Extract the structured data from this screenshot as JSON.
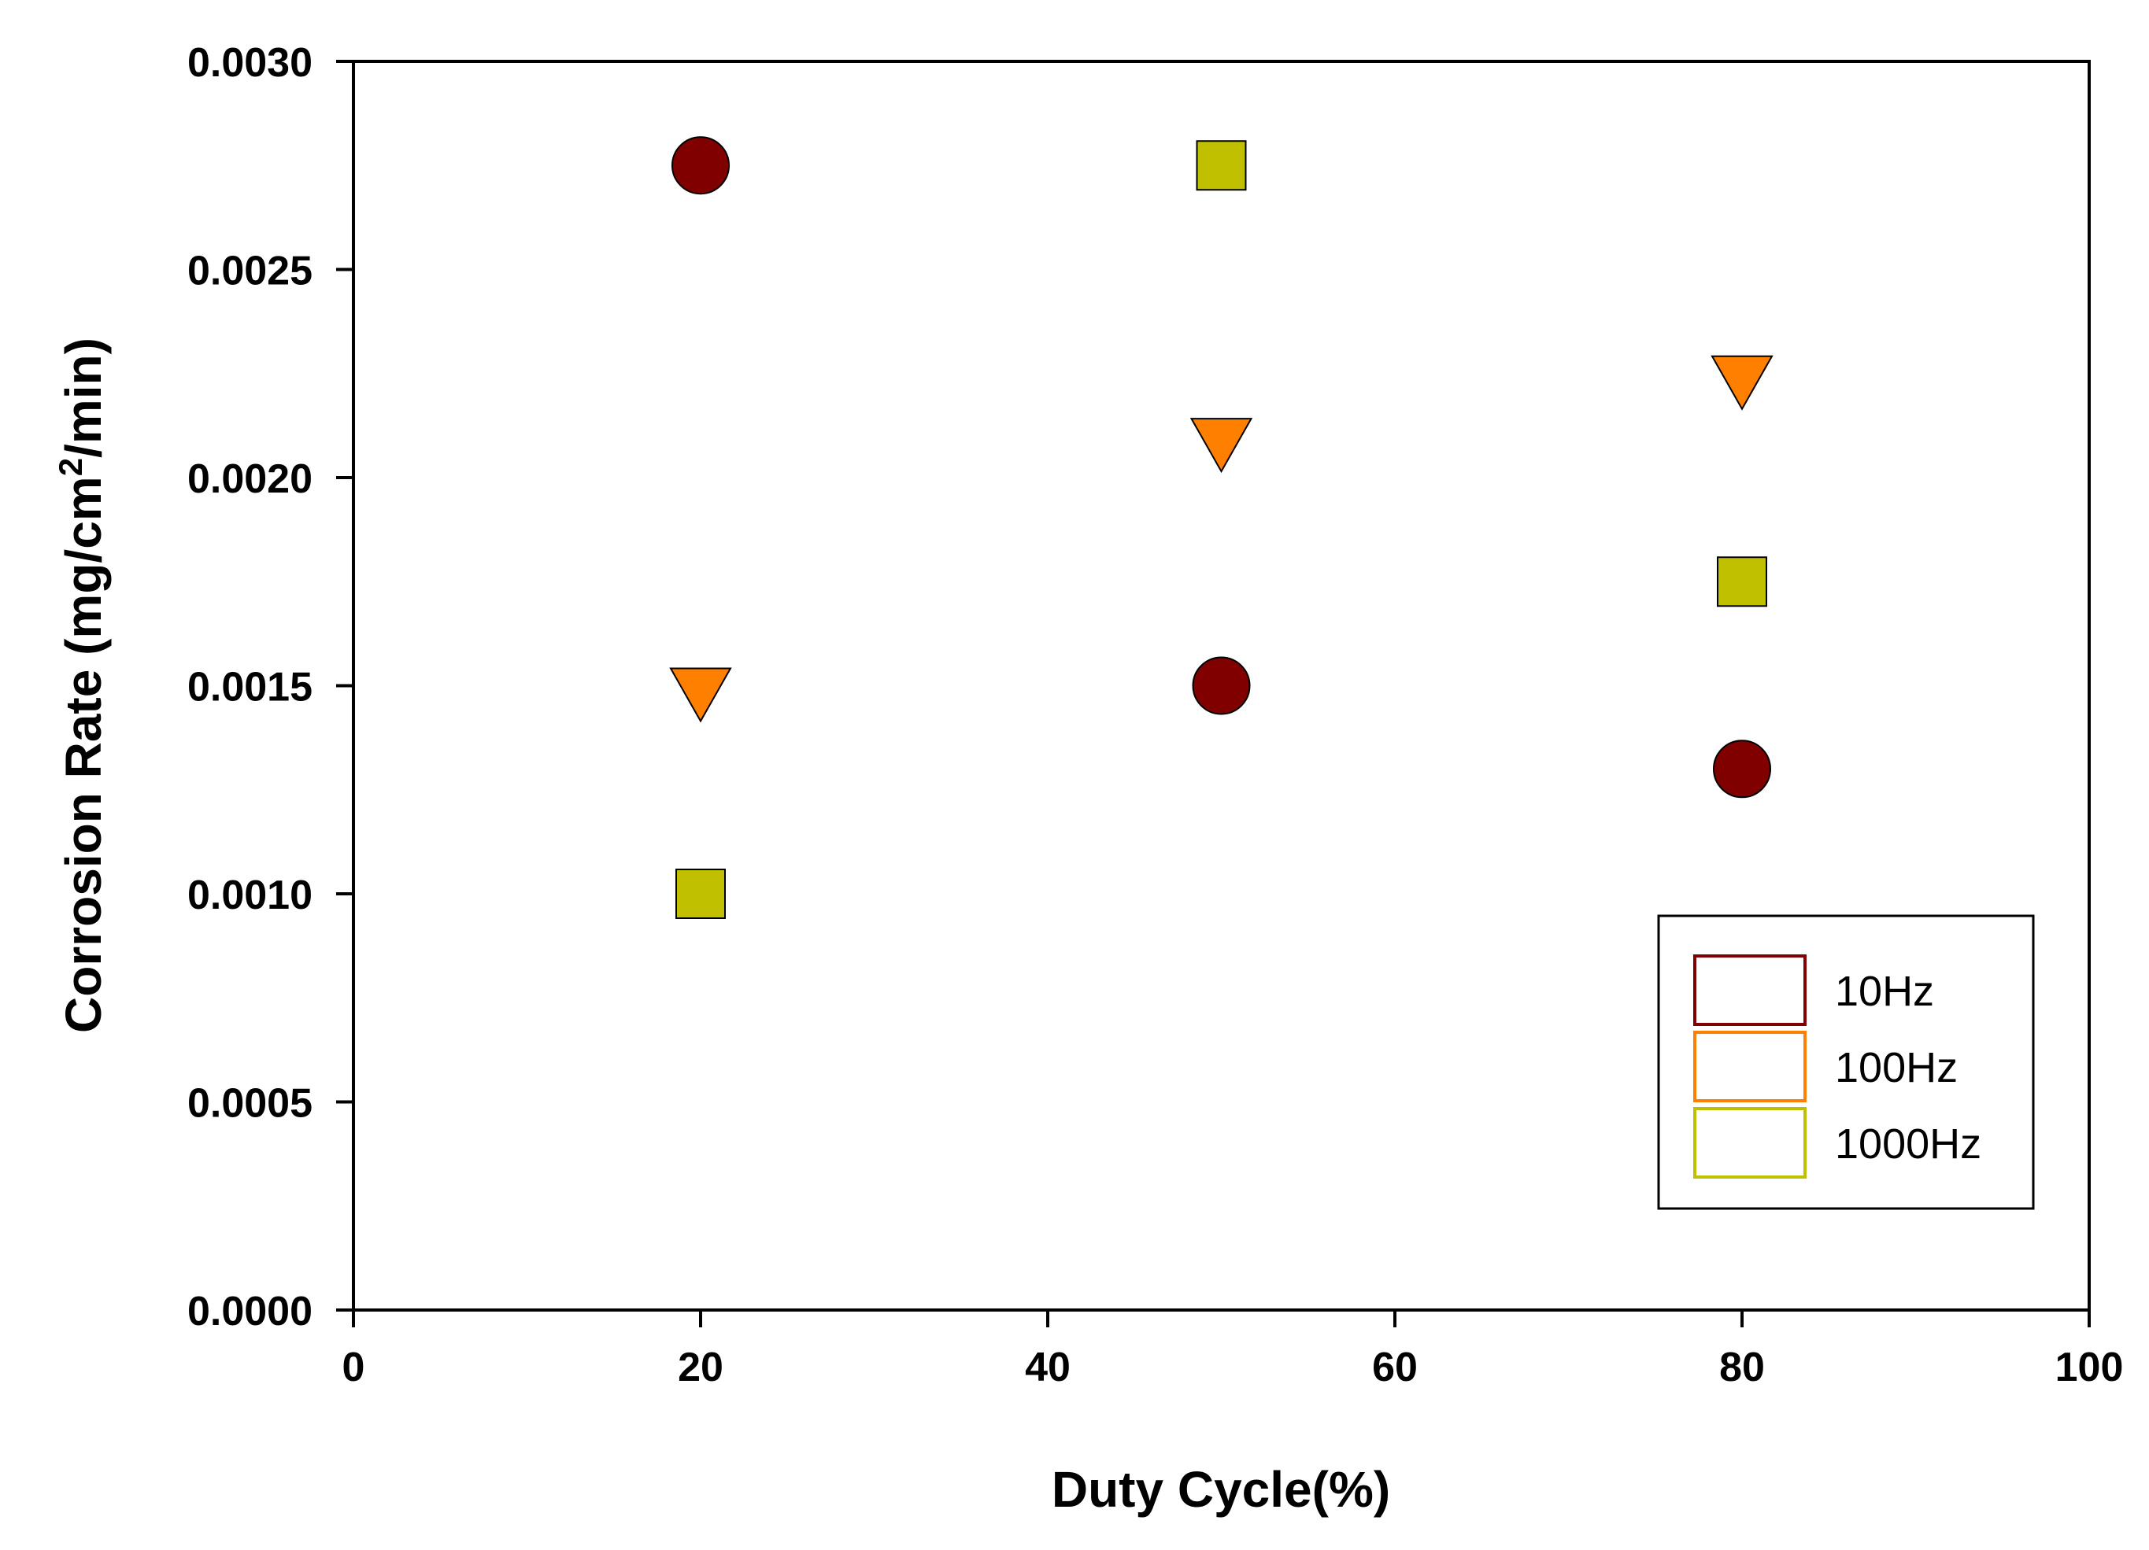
{
  "chart_data": {
    "type": "scatter",
    "title": "",
    "xlabel": "Duty Cycle(%)",
    "ylabel_parts": [
      "Corrosion Rate (mg/cm",
      "2",
      "/min)"
    ],
    "xlim": [
      0,
      100
    ],
    "ylim": [
      0,
      0.003
    ],
    "x_ticks": [
      0,
      20,
      40,
      60,
      80,
      100
    ],
    "x_tick_labels": [
      "0",
      "20",
      "40",
      "60",
      "80",
      "100"
    ],
    "y_ticks": [
      0,
      0.0005,
      0.001,
      0.0015,
      0.002,
      0.0025,
      0.003
    ],
    "y_tick_labels": [
      "0.0000",
      "0.0005",
      "0.0010",
      "0.0015",
      "0.0020",
      "0.0025",
      "0.0030"
    ],
    "grid": false,
    "legend_position": "bottom-right",
    "series": [
      {
        "name": "10Hz",
        "marker": "circle",
        "color": "#800000",
        "x": [
          20,
          50,
          80
        ],
        "y": [
          0.00275,
          0.0015,
          0.0013
        ]
      },
      {
        "name": "100Hz",
        "marker": "triangle-down",
        "color": "#ff8000",
        "x": [
          20,
          50,
          80
        ],
        "y": [
          0.0015,
          0.0021,
          0.00225
        ]
      },
      {
        "name": "1000Hz",
        "marker": "square",
        "color": "#c0c000",
        "x": [
          20,
          50,
          80
        ],
        "y": [
          0.001,
          0.00275,
          0.00175
        ]
      }
    ]
  }
}
